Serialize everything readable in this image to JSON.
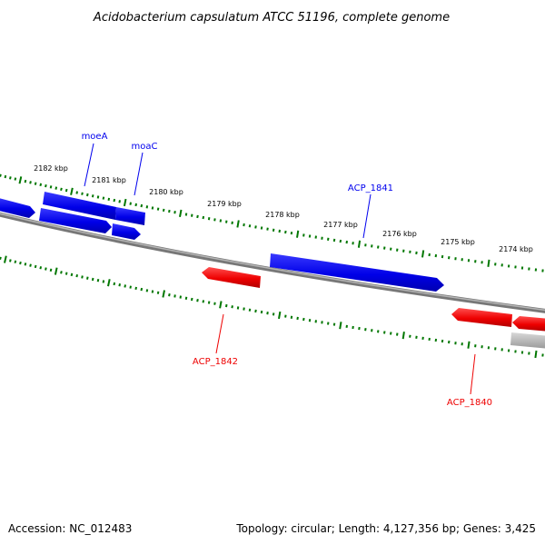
{
  "title": "Acidobacterium capsulatum ATCC 51196, complete genome",
  "accession": "Accession: NC_012483",
  "summary": "Topology: circular; Length: 4,127,356 bp; Genes: 3,425",
  "colors": {
    "forward": "#0000ee",
    "reverse": "#ee0000",
    "other": "#b0b0b0",
    "backbone": "#888888",
    "ticks": "#007700"
  },
  "ticks": [
    "2182 kbp",
    "2181 kbp",
    "2180 kbp",
    "2179 kbp",
    "2178 kbp",
    "2177 kbp",
    "2176 kbp",
    "2175 kbp",
    "2174 kbp"
  ],
  "gene_labels": {
    "moeA": "moeA",
    "moaC": "moaC",
    "acp1841": "ACP_1841",
    "acp1842": "ACP_1842",
    "acp1840": "ACP_1840"
  }
}
